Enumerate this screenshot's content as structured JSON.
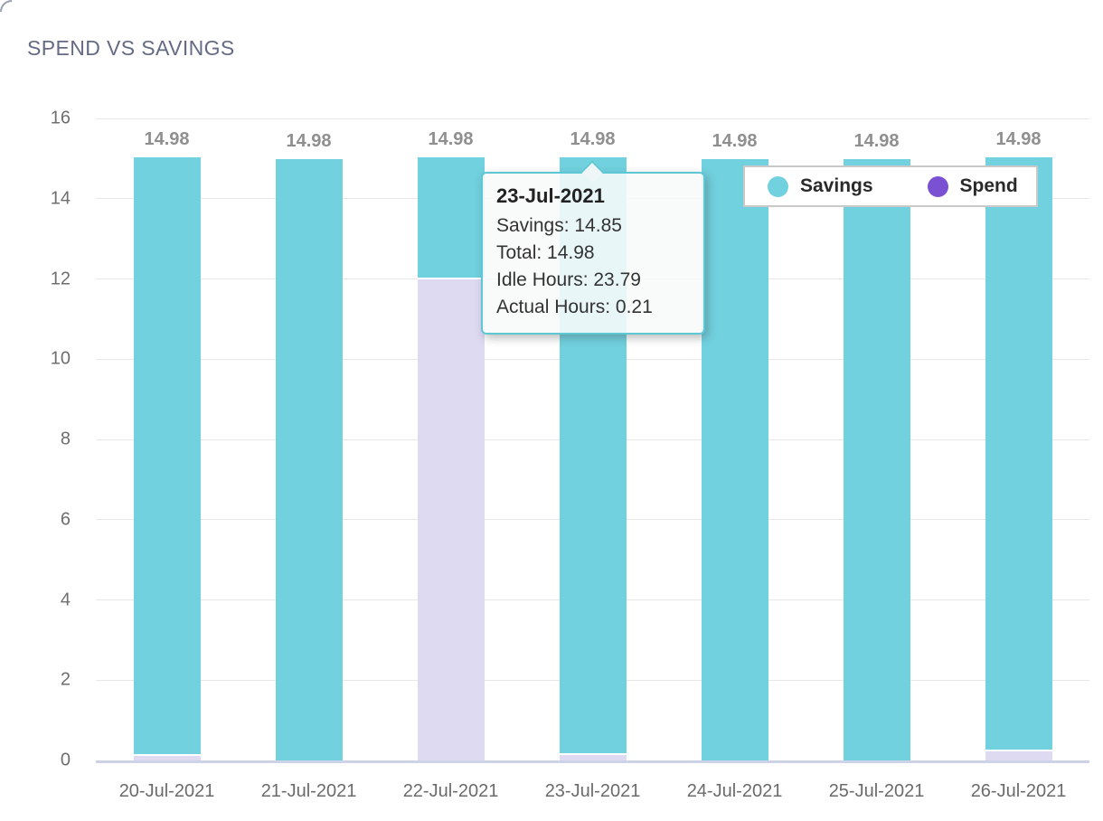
{
  "title": "SPEND VS SAVINGS",
  "chart_data": {
    "type": "bar",
    "stacked": true,
    "title": "SPEND VS SAVINGS",
    "categories": [
      "20-Jul-2021",
      "21-Jul-2021",
      "22-Jul-2021",
      "23-Jul-2021",
      "24-Jul-2021",
      "25-Jul-2021",
      "26-Jul-2021"
    ],
    "series": [
      {
        "name": "Savings",
        "color": "#71d1df",
        "values": [
          14.87,
          14.98,
          2.98,
          14.85,
          14.98,
          14.98,
          14.76
        ]
      },
      {
        "name": "Spend",
        "color": "#dedaf2",
        "values": [
          0.11,
          0,
          12,
          0.13,
          0,
          0,
          0.22
        ]
      }
    ],
    "totals": [
      14.98,
      14.98,
      14.98,
      14.98,
      14.98,
      14.98,
      14.98
    ],
    "bar_value_labels": [
      "14.98",
      "14.98",
      "14.98",
      "14.98",
      "14.98",
      "14.98",
      "14.98"
    ],
    "ylim": [
      0,
      16
    ],
    "yticks": [
      0,
      2,
      4,
      6,
      8,
      10,
      12,
      14,
      16
    ],
    "grid": "horizontal",
    "legend_position": "top-right"
  },
  "legend": {
    "items": [
      {
        "label": "Savings",
        "color": "#71d1df"
      },
      {
        "label": "Spend",
        "color": "#7b51d4"
      }
    ]
  },
  "tooltip": {
    "title": "23-Jul-2021",
    "lines": [
      "Savings: 14.85",
      "Total: 14.98",
      "Idle Hours: 23.79",
      "Actual Hours: 0.21"
    ]
  }
}
